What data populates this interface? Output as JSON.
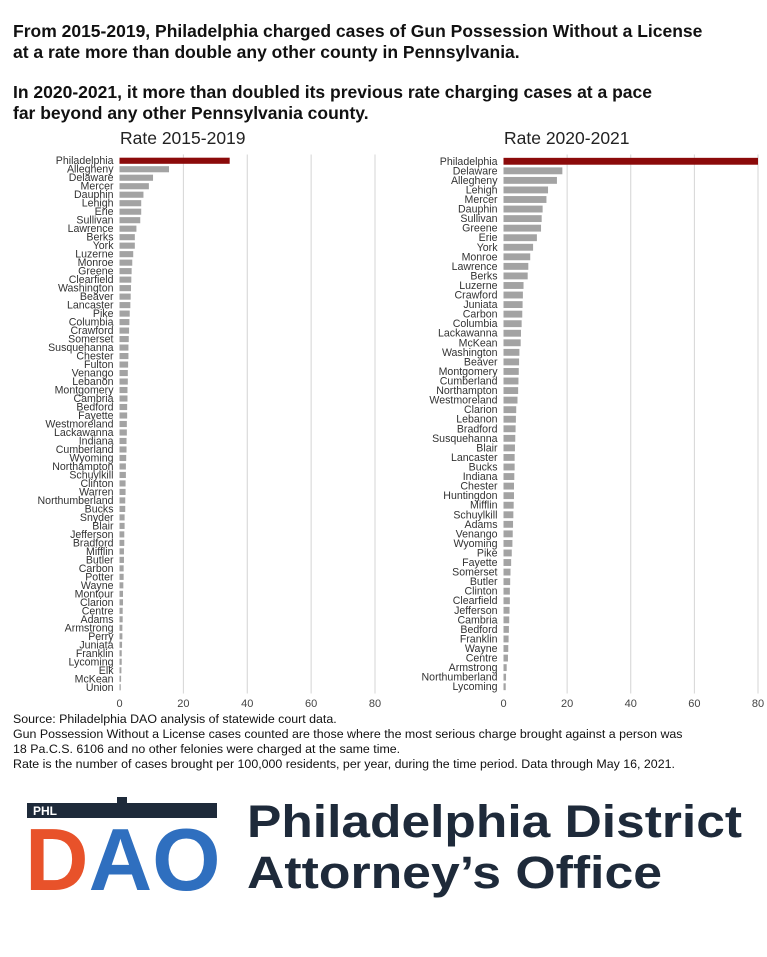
{
  "headline": {
    "line1": "From 2015-2019, Philadelphia charged cases of Gun Possession Without a License\nat a rate more than double any other county in Pennsylvania.",
    "line2": "In 2020-2021, it more than doubled its previous rate charging cases at a pace\nfar beyond any other Pennsylvania county."
  },
  "chart_data": [
    {
      "type": "bar",
      "orientation": "horizontal",
      "title": "Rate 2015-2019",
      "xlim": [
        0,
        80
      ],
      "xticks": [
        "0",
        "20",
        "40",
        "60",
        "80"
      ],
      "grid": true,
      "highlight_color": "#8b0a0a",
      "bar_color": "#a3a3a3",
      "categories": [
        "Philadelphia",
        "Allegheny",
        "Delaware",
        "Mercer",
        "Dauphin",
        "Lehigh",
        "Erie",
        "Sullivan",
        "Lawrence",
        "Berks",
        "York",
        "Luzerne",
        "Monroe",
        "Greene",
        "Clearfield",
        "Washington",
        "Beaver",
        "Lancaster",
        "Pike",
        "Columbia",
        "Crawford",
        "Somerset",
        "Susquehanna",
        "Chester",
        "Fulton",
        "Venango",
        "Lebanon",
        "Montgomery",
        "Cambria",
        "Bedford",
        "Fayette",
        "Westmoreland",
        "Lackawanna",
        "Indiana",
        "Cumberland",
        "Wyoming",
        "Northampton",
        "Schuylkill",
        "Clinton",
        "Warren",
        "Northumberland",
        "Bucks",
        "Snyder",
        "Blair",
        "Jefferson",
        "Bradford",
        "Mifflin",
        "Butler",
        "Carbon",
        "Potter",
        "Wayne",
        "Montour",
        "Clarion",
        "Centre",
        "Adams",
        "Armstrong",
        "Perry",
        "Juniata",
        "Franklin",
        "Lycoming",
        "Elk",
        "McKean",
        "Union"
      ],
      "values": [
        34.5,
        15.5,
        10.5,
        9.2,
        7.5,
        6.8,
        6.8,
        6.5,
        5.3,
        4.8,
        4.8,
        4.3,
        4.0,
        3.8,
        3.7,
        3.6,
        3.5,
        3.4,
        3.2,
        3.1,
        3.0,
        2.9,
        2.8,
        2.8,
        2.7,
        2.6,
        2.6,
        2.5,
        2.5,
        2.4,
        2.4,
        2.3,
        2.3,
        2.2,
        2.2,
        2.1,
        2.0,
        2.0,
        1.9,
        1.9,
        1.8,
        1.8,
        1.6,
        1.6,
        1.5,
        1.5,
        1.4,
        1.4,
        1.3,
        1.3,
        1.2,
        1.1,
        1.1,
        1.0,
        1.0,
        0.9,
        0.9,
        0.8,
        0.7,
        0.7,
        0.6,
        0.5,
        0.4
      ]
    },
    {
      "type": "bar",
      "orientation": "horizontal",
      "title": "Rate 2020-2021",
      "xlim": [
        0,
        80
      ],
      "xticks": [
        "0",
        "20",
        "40",
        "60",
        "80"
      ],
      "grid": true,
      "highlight_color": "#8b0a0a",
      "bar_color": "#a3a3a3",
      "categories": [
        "Philadelphia",
        "Delaware",
        "Allegheny",
        "Lehigh",
        "Mercer",
        "Dauphin",
        "Sullivan",
        "Greene",
        "Erie",
        "York",
        "Monroe",
        "Lawrence",
        "Berks",
        "Luzerne",
        "Crawford",
        "Juniata",
        "Carbon",
        "Columbia",
        "Lackawanna",
        "McKean",
        "Washington",
        "Beaver",
        "Montgomery",
        "Cumberland",
        "Northampton",
        "Westmoreland",
        "Clarion",
        "Lebanon",
        "Bradford",
        "Susquehanna",
        "Blair",
        "Lancaster",
        "Bucks",
        "Indiana",
        "Chester",
        "Huntingdon",
        "Mifflin",
        "Schuylkill",
        "Adams",
        "Venango",
        "Wyoming",
        "Pike",
        "Fayette",
        "Somerset",
        "Butler",
        "Clinton",
        "Clearfield",
        "Jefferson",
        "Cambria",
        "Bedford",
        "Franklin",
        "Wayne",
        "Centre",
        "Armstrong",
        "Northumberland",
        "Lycoming"
      ],
      "values": [
        80.0,
        18.5,
        16.8,
        14.0,
        13.5,
        12.3,
        12.0,
        11.8,
        10.5,
        9.3,
        8.4,
        7.8,
        7.6,
        6.3,
        6.1,
        6.0,
        5.9,
        5.7,
        5.5,
        5.4,
        5.0,
        4.9,
        4.8,
        4.7,
        4.6,
        4.4,
        4.0,
        3.9,
        3.8,
        3.7,
        3.6,
        3.5,
        3.5,
        3.4,
        3.3,
        3.3,
        3.2,
        3.1,
        3.0,
        2.9,
        2.8,
        2.6,
        2.4,
        2.2,
        2.1,
        2.0,
        2.0,
        1.9,
        1.8,
        1.7,
        1.6,
        1.5,
        1.4,
        1.0,
        0.8,
        0.7
      ]
    }
  ],
  "notes": {
    "source": "Source: Philadelphia DAO analysis of statewide court data.",
    "def1": "Gun Possession Without a License cases counted are those where the most serious charge brought against a person was",
    "def2": "18 Pa.C.S. 6106 and no other felonies were charged at the same time.",
    "rate": "Rate is the number of cases brought per 100,000 residents, per year, during the time period.  Data through May 16, 2021."
  },
  "logo": {
    "badge": "PHL",
    "mark": "DAO",
    "line1": "Philadelphia District",
    "line2": "Attorney’s Office",
    "orange": "#e8522a",
    "blue": "#2f6fbf",
    "dark": "#1e2a3a"
  }
}
